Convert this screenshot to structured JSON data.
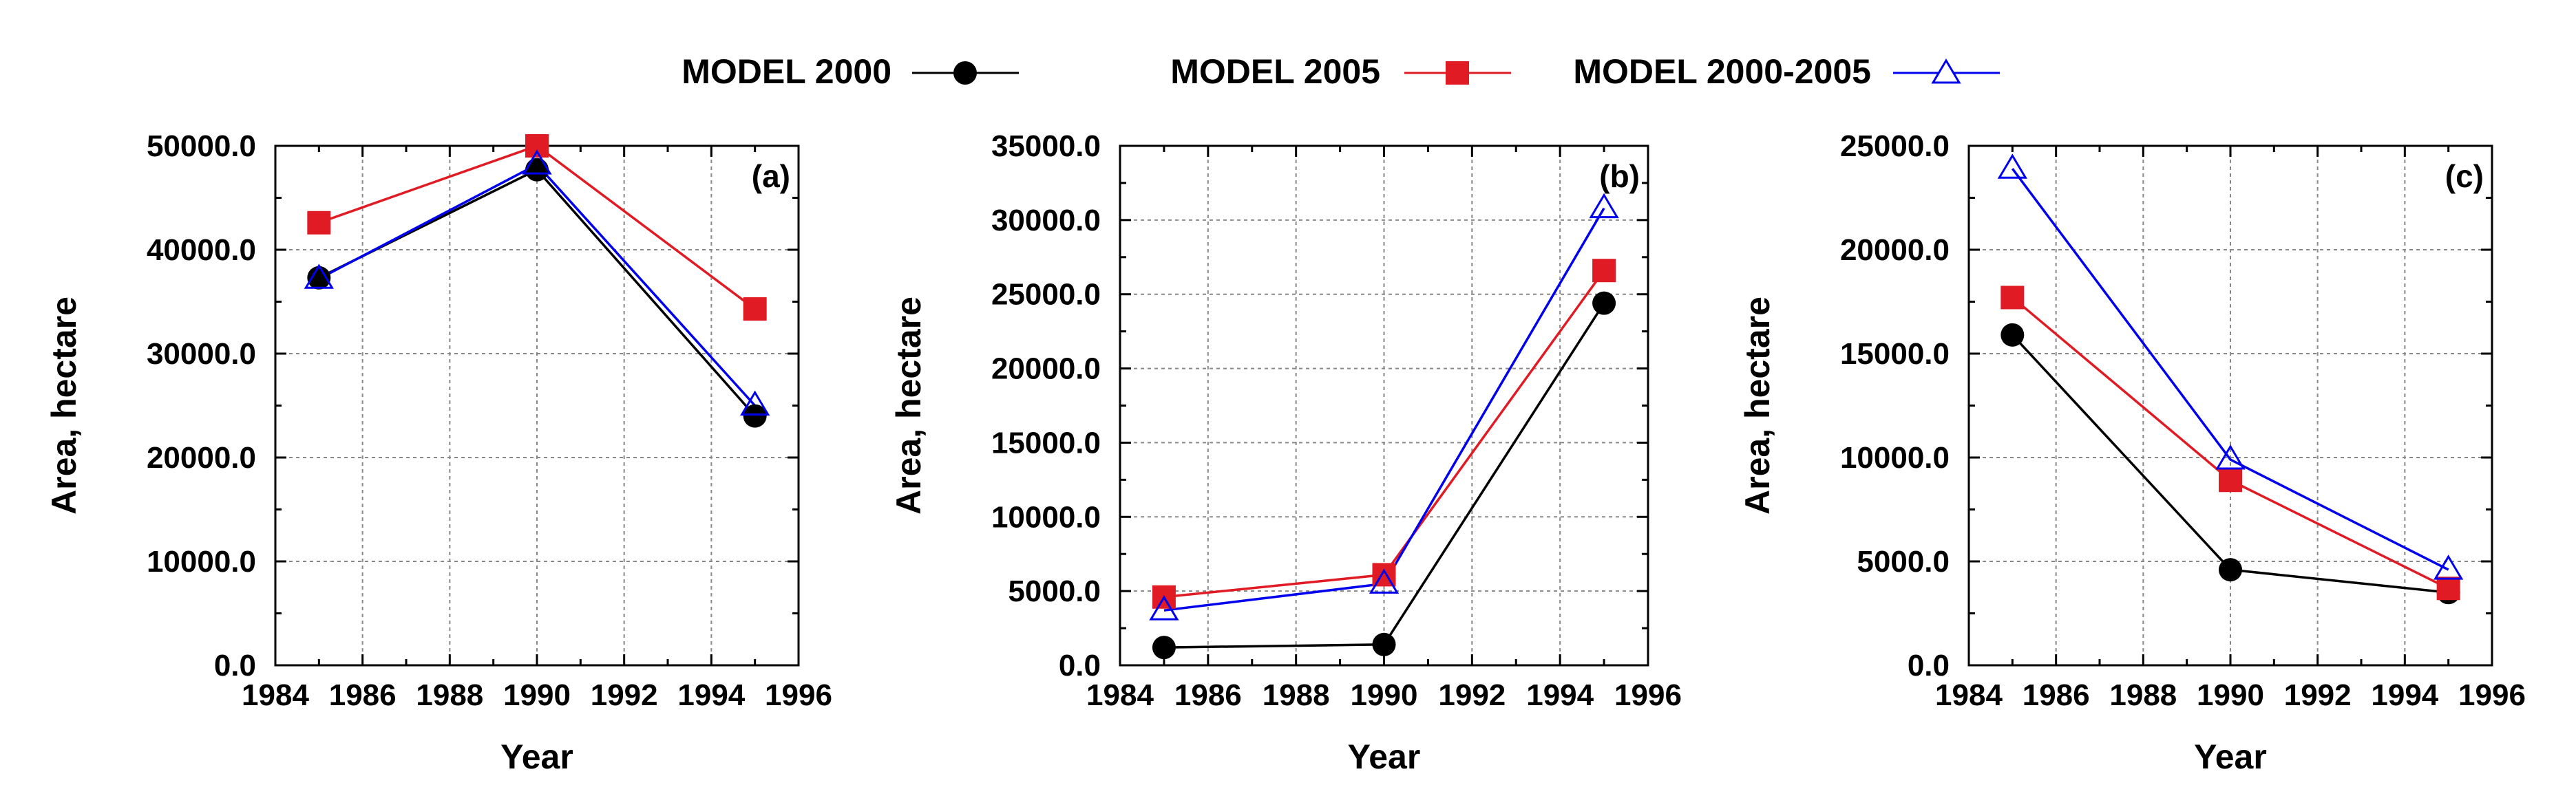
{
  "legend": [
    {
      "label": "MODEL 2000",
      "color": "#000000",
      "marker": "circle"
    },
    {
      "label": "MODEL 2005",
      "color": "#e01b24",
      "marker": "square"
    },
    {
      "label": "MODEL 2000-2005",
      "color": "#0000ee",
      "marker": "triangle-open"
    }
  ],
  "chart_data": [
    {
      "type": "line",
      "panel_label": "(a)",
      "xlabel": "Year",
      "ylabel": "Area, hectare",
      "xlim": [
        1984,
        1996
      ],
      "xticks": [
        1984,
        1986,
        1988,
        1990,
        1992,
        1994,
        1996
      ],
      "xtick_labels": [
        "1984",
        "1986",
        "1988",
        "1990",
        "1992",
        "1994",
        "1996"
      ],
      "ylim": [
        0,
        50000
      ],
      "yticks": [
        0,
        10000,
        20000,
        30000,
        40000,
        50000
      ],
      "ytick_labels": [
        "0.0",
        "10000.0",
        "20000.0",
        "30000.0",
        "40000.0",
        "50000.0"
      ],
      "grid": true,
      "x": [
        1985,
        1990,
        1995
      ],
      "series": [
        {
          "name": "MODEL 2000",
          "values": [
            37300,
            47700,
            24000
          ]
        },
        {
          "name": "MODEL 2005",
          "values": [
            42600,
            50000,
            34300
          ]
        },
        {
          "name": "MODEL 2000-2005",
          "values": [
            37200,
            48200,
            25000
          ]
        }
      ]
    },
    {
      "type": "line",
      "panel_label": "(b)",
      "xlabel": "Year",
      "ylabel": "Area, hectare",
      "xlim": [
        1984,
        1996
      ],
      "xticks": [
        1984,
        1986,
        1988,
        1990,
        1992,
        1994,
        1996
      ],
      "xtick_labels": [
        "1984",
        "1986",
        "1988",
        "1990",
        "1992",
        "1994",
        "1996"
      ],
      "ylim": [
        0,
        35000
      ],
      "yticks": [
        0,
        5000,
        10000,
        15000,
        20000,
        25000,
        30000,
        35000
      ],
      "ytick_labels": [
        "0.0",
        "5000.0",
        "10000.0",
        "15000.0",
        "20000.0",
        "25000.0",
        "30000.0",
        "35000.0"
      ],
      "grid": true,
      "x": [
        1985,
        1990,
        1995
      ],
      "series": [
        {
          "name": "MODEL 2000",
          "values": [
            1200,
            1400,
            24400
          ]
        },
        {
          "name": "MODEL 2005",
          "values": [
            4600,
            6100,
            26600
          ]
        },
        {
          "name": "MODEL 2000-2005",
          "values": [
            3700,
            5500,
            30800
          ]
        }
      ]
    },
    {
      "type": "line",
      "panel_label": "(c)",
      "xlabel": "Year",
      "ylabel": "Area, hectare",
      "xlim": [
        1984,
        1996
      ],
      "xticks": [
        1984,
        1986,
        1988,
        1990,
        1992,
        1994,
        1996
      ],
      "xtick_labels": [
        "1984",
        "1986",
        "1988",
        "1990",
        "1992",
        "1994",
        "1996"
      ],
      "ylim": [
        0,
        25000
      ],
      "yticks": [
        0,
        5000,
        10000,
        15000,
        20000,
        25000
      ],
      "ytick_labels": [
        "0.0",
        "5000.0",
        "10000.0",
        "15000.0",
        "20000.0",
        "25000.0"
      ],
      "grid": true,
      "x": [
        1985,
        1990,
        1995
      ],
      "series": [
        {
          "name": "MODEL 2000",
          "values": [
            15900,
            4600,
            3500
          ]
        },
        {
          "name": "MODEL 2005",
          "values": [
            17700,
            8900,
            3700
          ]
        },
        {
          "name": "MODEL 2000-2005",
          "values": [
            23900,
            9900,
            4600
          ]
        }
      ]
    }
  ]
}
